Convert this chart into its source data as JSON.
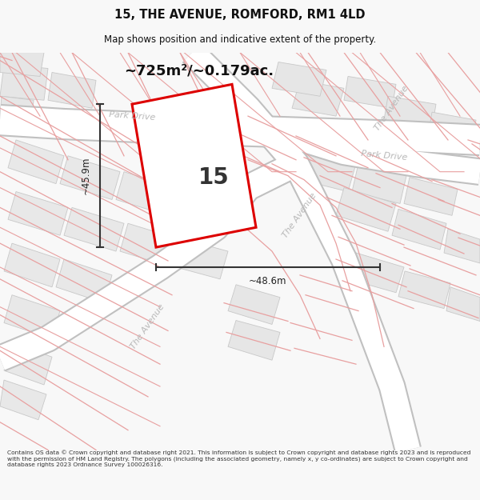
{
  "title": "15, THE AVENUE, ROMFORD, RM1 4LD",
  "subtitle": "Map shows position and indicative extent of the property.",
  "area_label": "~725m²/~0.179ac.",
  "number_label": "15",
  "width_label": "~48.6m",
  "height_label": "~45.9m",
  "footer_text": "Contains OS data © Crown copyright and database right 2021. This information is subject to Crown copyright and database rights 2023 and is reproduced with the permission of HM Land Registry. The polygons (including the associated geometry, namely x, y co-ordinates) are subject to Crown copyright and database rights 2023 Ordnance Survey 100026316.",
  "map_bg": "#ffffff",
  "plot_fill": "#ffffff",
  "plot_edge": "#dd0000",
  "road_fill": "#ffffff",
  "road_edge": "#c8c8c8",
  "pink_line": "#e8a0a0",
  "block_fill": "#e8e8e8",
  "block_edge": "#cccccc",
  "dim_color": "#333333",
  "title_color": "#111111",
  "street_label_color": "#aaaaaa",
  "fig_bg": "#f8f8f8"
}
